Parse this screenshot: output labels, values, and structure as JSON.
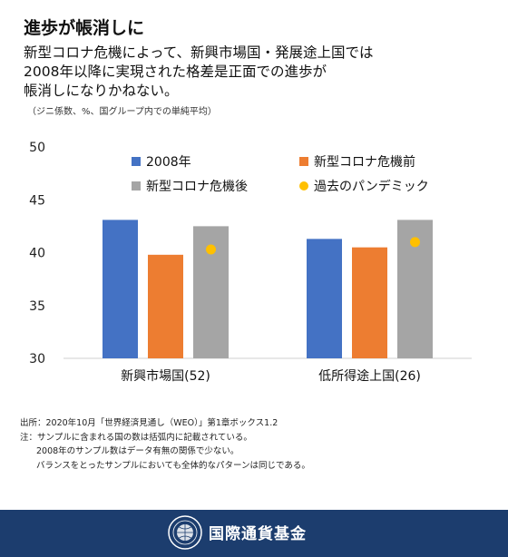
{
  "header": {
    "title": "進歩が帳消しに",
    "subtitle": "新型コロナ危機によって、新興市場国・発展途上国では\n2008年以降に実現された格差是正面での進歩が\n帳消しになりかねない。",
    "units": "（ジニ係数、%、国グループ内での単純平均）"
  },
  "chart_data": {
    "type": "bar",
    "categories": [
      "新興市場国(52)",
      "低所得途上国(26)"
    ],
    "series": [
      {
        "name": "2008年",
        "type": "bar",
        "color": "#4472c4",
        "values": [
          43.1,
          41.3
        ]
      },
      {
        "name": "新型コロナ危機前",
        "type": "bar",
        "color": "#ed7d31",
        "values": [
          39.8,
          40.5
        ]
      },
      {
        "name": "新型コロナ危機後",
        "type": "bar",
        "color": "#a5a5a5",
        "values": [
          42.5,
          43.1
        ]
      },
      {
        "name": "過去のパンデミック",
        "type": "scatter",
        "color": "#ffc000",
        "values": [
          40.3,
          41.0
        ]
      }
    ],
    "yticks": [
      30,
      35,
      40,
      45,
      50
    ],
    "ylim": [
      30,
      50
    ],
    "grid": false,
    "legend": "top"
  },
  "notes": {
    "source": "出所：2020年10月「世界経済見通し（WEO）」第1章ボックス1.2",
    "note1": "注：サンプルに含まれる国の数は括弧内に記載されている。",
    "note2": "2008年のサンプル数はデータ有無の関係で少ない。",
    "note3": "バランスをとったサンプルにおいても全体的なパターンは同じである。"
  },
  "footer": {
    "org_name": "国際通貨基金",
    "logo_icon": "imf-seal-icon",
    "background": "#1c3d6e"
  }
}
